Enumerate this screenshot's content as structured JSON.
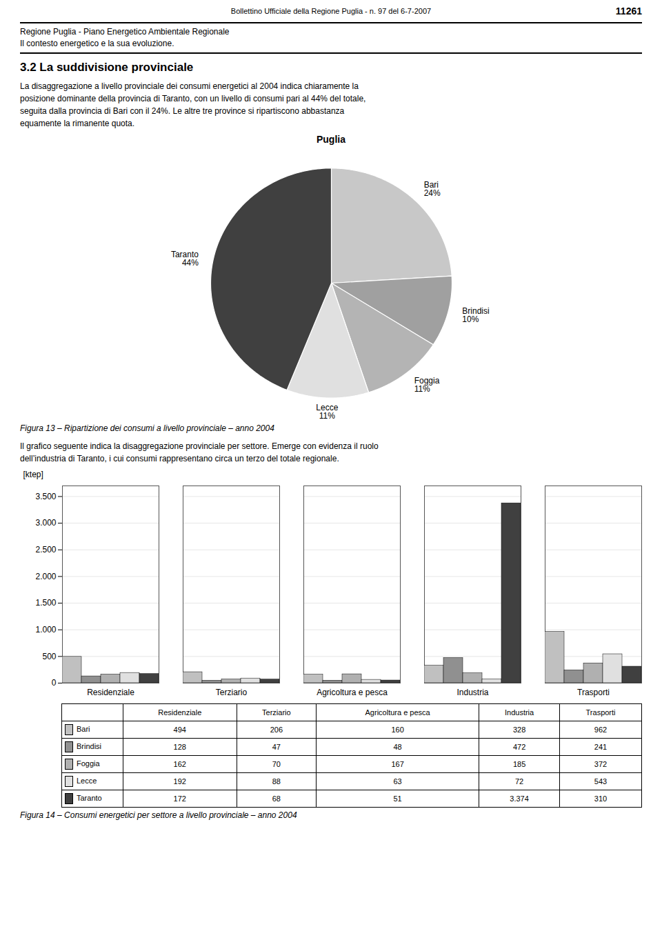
{
  "page_title": "Bollettino Ufficiale della Regione Puglia - n. 97 del 6-7-2007",
  "page_number": "11261",
  "header_lines": [
    "Regione Puglia - Piano Energetico Ambientale Regionale",
    "Il contesto energetico e la sua evoluzione."
  ],
  "section_title": "3.2   La suddivisione provinciale",
  "body_text": "La disaggregazione a livello provinciale dei consumi energetici al 2004 indica chiaramente la\nposizione dominante della provincia di Taranto, con un livello di consumi pari al 44% del totale,\nseguita dalla provincia di Bari con il 24%. Le altre tre province si ripartiscono abbastanza\nequamente la rimanente quota.",
  "text2": "Il grafico seguente indica la disaggregazione provinciale per settore. Emerge con evidenza il ruolo\ndell’industria di Taranto, i cui consumi rappresentano circa un terzo del totale regionale.",
  "chart_data": [
    {
      "type": "pie",
      "title": "Puglia",
      "caption": "Figura 13 – Ripartizione dei consumi a livello provinciale – anno 2004",
      "categories": [
        "Bari",
        "Brindisi",
        "Foggia",
        "Lecce",
        "Taranto"
      ],
      "values": [
        24,
        10,
        11,
        11,
        44
      ],
      "value_labels": [
        "24%",
        "10%",
        "11%",
        "11%",
        "44%"
      ],
      "colors": [
        "#c8c8c8",
        "#a0a0a0",
        "#b4b4b4",
        "#e0e0e0",
        "#404040"
      ],
      "data_labels": true
    },
    {
      "type": "bar",
      "caption": "Figura 14 – Consumi energetici per settore a livello provinciale – anno 2004",
      "categories": [
        "Residenziale",
        "Terziario",
        "Agricoltura e pesca",
        "Industria",
        "Trasporti"
      ],
      "series": [
        {
          "name": "Bari",
          "color": "#c0c0c0",
          "values": [
            494,
            206,
            160,
            328,
            962
          ],
          "value_labels": [
            "494",
            "206",
            "160",
            "328",
            "962"
          ]
        },
        {
          "name": "Brindisi",
          "color": "#909090",
          "values": [
            128,
            47,
            48,
            472,
            241
          ],
          "value_labels": [
            "128",
            "47",
            "48",
            "472",
            "241"
          ]
        },
        {
          "name": "Foggia",
          "color": "#b0b0b0",
          "values": [
            162,
            70,
            167,
            185,
            372
          ],
          "value_labels": [
            "162",
            "70",
            "167",
            "185",
            "372"
          ]
        },
        {
          "name": "Lecce",
          "color": "#e0e0e0",
          "values": [
            192,
            88,
            63,
            72,
            543
          ],
          "value_labels": [
            "192",
            "88",
            "63",
            "72",
            "543"
          ]
        },
        {
          "name": "Taranto",
          "color": "#404040",
          "values": [
            172,
            68,
            51,
            3374,
            310
          ],
          "value_labels": [
            "172",
            "68",
            "51",
            "3.374",
            "310"
          ]
        }
      ],
      "ylabel": "[ktep]",
      "ylim": [
        0,
        3700
      ],
      "yticks": [
        0,
        500,
        {
          "value": 1000,
          "label": "1.000"
        },
        {
          "value": 1500,
          "label": "1.500"
        },
        {
          "value": 2000,
          "label": "2.000"
        },
        {
          "value": 2500,
          "label": "2.500"
        },
        {
          "value": 3000,
          "label": "3.000"
        },
        {
          "value": 3500,
          "label": "3.500"
        }
      ],
      "grid": true
    }
  ]
}
